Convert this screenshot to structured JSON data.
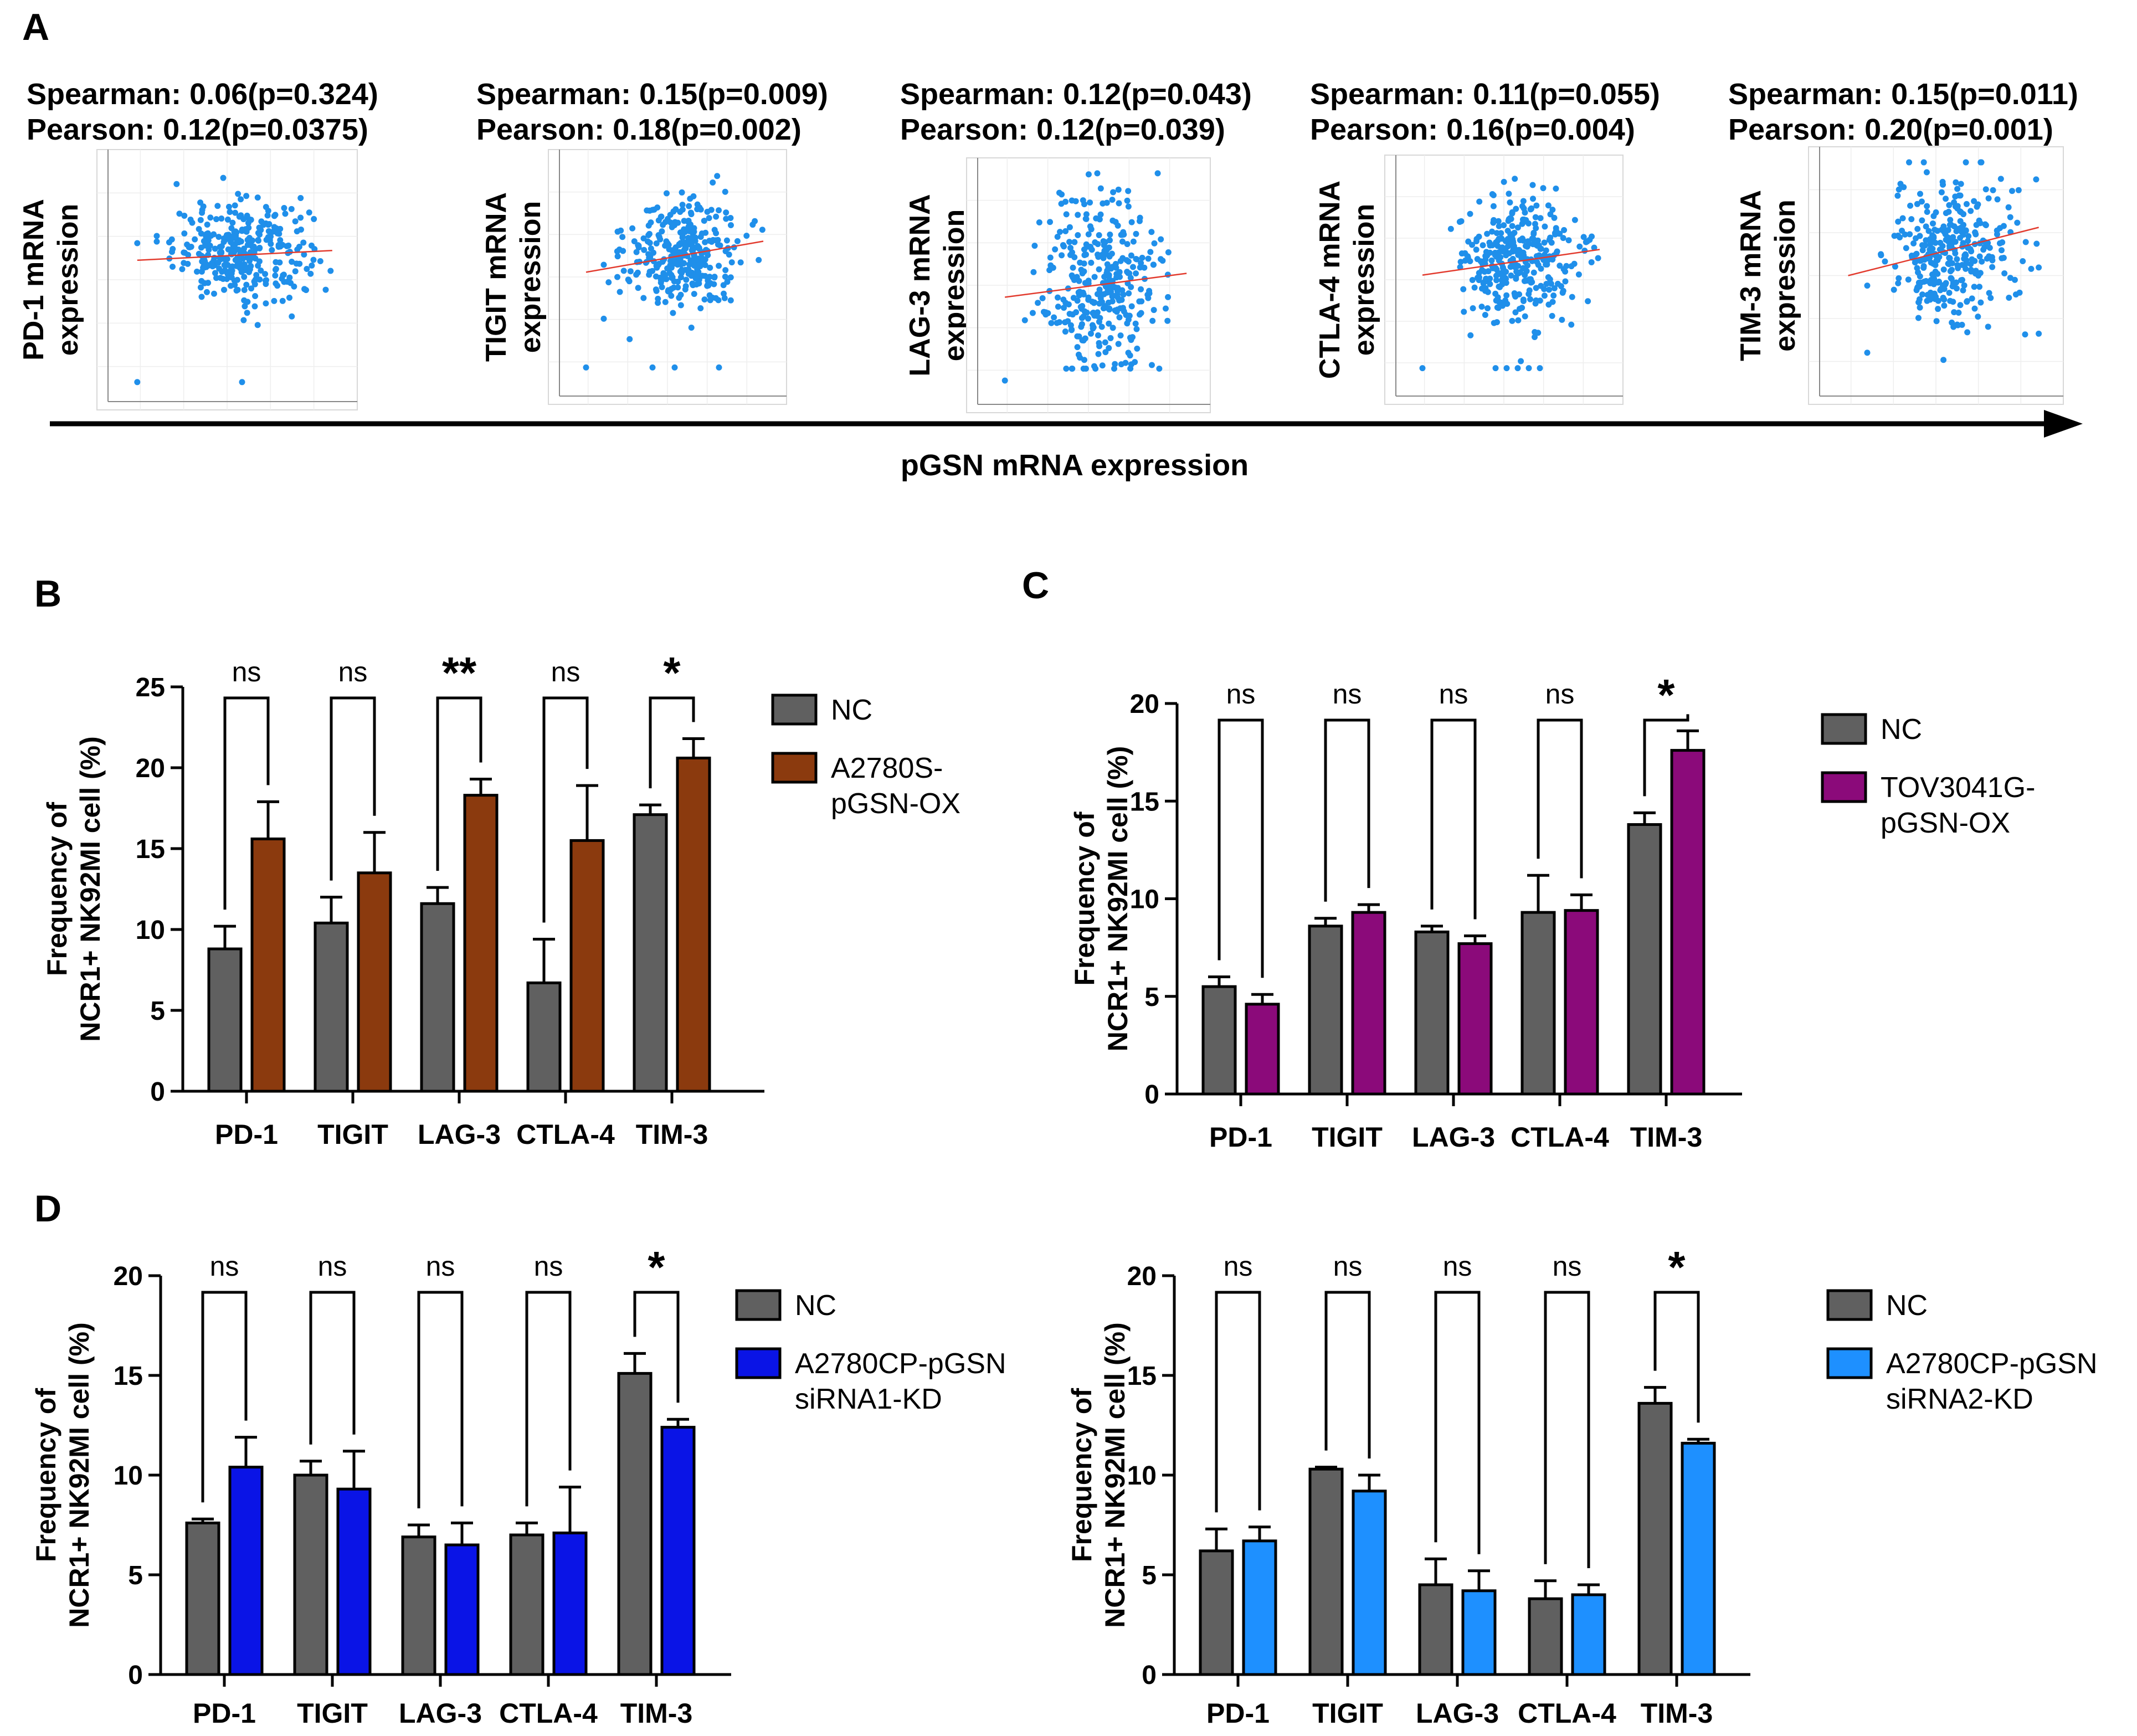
{
  "panel_a": {
    "label": "A",
    "x_label": "pGSN mRNA expression",
    "chart_data": [
      {
        "type": "scatter",
        "gene": "PD-1",
        "spearman": "Spearman: 0.06(p=0.324)",
        "pearson": "Pearson: 0.12(p=0.0375)",
        "ylabel_line1": "PD-1 mRNA",
        "ylabel_line2": "expression",
        "trend": {
          "y_start": 0.58,
          "y_end": 0.62
        },
        "n_points": 320,
        "cx": 0.55,
        "cy": 0.62,
        "sx": 0.14,
        "sy": 0.1,
        "outliers": [
          [
            0.12,
            0.08
          ],
          [
            0.55,
            0.08
          ],
          [
            0.12,
            0.65
          ]
        ]
      },
      {
        "type": "scatter",
        "gene": "TIGIT",
        "spearman": "Spearman: 0.15(p=0.009)",
        "pearson": "Pearson: 0.18(p=0.002)",
        "ylabel_line1": "TIGIT mRNA",
        "ylabel_line2": "expression",
        "trend": {
          "y_start": 0.52,
          "y_end": 0.65
        },
        "n_points": 320,
        "cx": 0.55,
        "cy": 0.6,
        "sx": 0.13,
        "sy": 0.12,
        "outliers": [
          [
            0.12,
            0.12
          ],
          [
            0.42,
            0.12
          ],
          [
            0.52,
            0.12
          ],
          [
            0.72,
            0.12
          ]
        ]
      },
      {
        "type": "scatter",
        "gene": "LAG-3",
        "spearman": "Spearman: 0.12(p=0.043)",
        "pearson": "Pearson: 0.12(p=0.039)",
        "ylabel_line1": "LAG-3  mRNA",
        "ylabel_line2": "expression",
        "trend": {
          "y_start": 0.45,
          "y_end": 0.55
        },
        "n_points": 340,
        "cx": 0.55,
        "cy": 0.5,
        "sx": 0.13,
        "sy": 0.2,
        "outliers": [
          [
            0.12,
            0.1
          ]
        ]
      },
      {
        "type": "scatter",
        "gene": "CTLA-4",
        "spearman": "Spearman: 0.11(p=0.055)",
        "pearson": "Pearson: 0.16(p=0.004)",
        "ylabel_line1": "CTLA-4  mRNA",
        "ylabel_line2": "expression",
        "trend": {
          "y_start": 0.52,
          "y_end": 0.63
        },
        "n_points": 340,
        "cx": 0.55,
        "cy": 0.58,
        "sx": 0.13,
        "sy": 0.14,
        "outliers": [
          [
            0.12,
            0.12
          ],
          [
            0.45,
            0.12
          ],
          [
            0.5,
            0.12
          ],
          [
            0.55,
            0.12
          ],
          [
            0.6,
            0.12
          ],
          [
            0.65,
            0.12
          ]
        ]
      },
      {
        "type": "scatter",
        "gene": "TIM-3",
        "spearman": "Spearman: 0.15(p=0.011)",
        "pearson": "Pearson: 0.20(p=0.001)",
        "ylabel_line1": "TIM-3  mRNA",
        "ylabel_line2": "expression",
        "trend": {
          "y_start": 0.5,
          "y_end": 0.7
        },
        "n_points": 330,
        "cx": 0.55,
        "cy": 0.6,
        "sx": 0.13,
        "sy": 0.16,
        "outliers": [
          [
            0.2,
            0.18
          ],
          [
            0.52,
            0.15
          ]
        ]
      }
    ]
  },
  "chart_data": [
    {
      "panel": "B",
      "type": "bar",
      "label": "B",
      "categories": [
        "PD-1",
        "TIGIT",
        "LAG-3",
        "CTLA-4",
        "TIM-3"
      ],
      "ylabel_line1": "Frequency of",
      "ylabel_line2": "NCR1+ NK92MI cell (%)",
      "ylim": [
        0,
        25
      ],
      "yticks": [
        0,
        5,
        10,
        15,
        20,
        25
      ],
      "series": [
        {
          "name": "NC",
          "color": "#606060",
          "values": [
            8.8,
            10.4,
            11.6,
            6.7,
            17.1
          ],
          "errors": [
            1.4,
            1.6,
            1.0,
            2.7,
            0.6
          ]
        },
        {
          "name": "A2780S-\npGSN-OX",
          "legend_line1": "A2780S-",
          "legend_line2": "pGSN-OX",
          "color": "#8B3A0E",
          "values": [
            15.6,
            13.5,
            18.3,
            15.5,
            20.6
          ],
          "errors": [
            2.3,
            2.5,
            1.0,
            3.4,
            1.2
          ]
        }
      ],
      "significance": [
        "ns",
        "ns",
        "**",
        "ns",
        "*"
      ]
    },
    {
      "panel": "C",
      "type": "bar",
      "label": "C",
      "categories": [
        "PD-1",
        "TIGIT",
        "LAG-3",
        "CTLA-4",
        "TIM-3"
      ],
      "ylabel_line1": "Frequency of",
      "ylabel_line2": "NCR1+ NK92MI cell (%)",
      "ylim": [
        0,
        20
      ],
      "yticks": [
        0,
        5,
        10,
        15,
        20
      ],
      "series": [
        {
          "name": "NC",
          "color": "#606060",
          "values": [
            5.5,
            8.6,
            8.3,
            9.3,
            13.8
          ],
          "errors": [
            0.5,
            0.4,
            0.3,
            1.9,
            0.6
          ]
        },
        {
          "name": "TOV3041G-\npGSN-OX",
          "legend_line1": "TOV3041G-",
          "legend_line2": "pGSN-OX",
          "color": "#8B0A7A",
          "values": [
            4.6,
            9.3,
            7.7,
            9.4,
            17.6
          ],
          "errors": [
            0.5,
            0.4,
            0.4,
            0.8,
            1.0
          ]
        }
      ],
      "significance": [
        "ns",
        "ns",
        "ns",
        "ns",
        "*"
      ]
    },
    {
      "panel": "D1",
      "type": "bar",
      "label": "D",
      "categories": [
        "PD-1",
        "TIGIT",
        "LAG-3",
        "CTLA-4",
        "TIM-3"
      ],
      "ylabel_line1": "Frequency of",
      "ylabel_line2": "NCR1+ NK92MI cell (%)",
      "ylim": [
        0,
        20
      ],
      "yticks": [
        0,
        5,
        10,
        15,
        20
      ],
      "series": [
        {
          "name": "NC",
          "color": "#606060",
          "values": [
            7.6,
            10.0,
            6.9,
            7.0,
            15.1
          ],
          "errors": [
            0.2,
            0.7,
            0.6,
            0.6,
            1.0
          ]
        },
        {
          "name": "A2780CP-pGSN\nsiRNA1-KD",
          "legend_line1": "A2780CP-pGSN",
          "legend_line2": "siRNA1-KD",
          "color": "#0A14E6",
          "values": [
            10.4,
            9.3,
            6.5,
            7.1,
            12.4
          ],
          "errors": [
            1.5,
            1.9,
            1.1,
            2.3,
            0.4
          ]
        }
      ],
      "significance": [
        "ns",
        "ns",
        "ns",
        "ns",
        "*"
      ]
    },
    {
      "panel": "D2",
      "type": "bar",
      "label": "",
      "categories": [
        "PD-1",
        "TIGIT",
        "LAG-3",
        "CTLA-4",
        "TIM-3"
      ],
      "ylabel_line1": "Frequency of",
      "ylabel_line2": "NCR1+ NK92MI cell (%)",
      "ylim": [
        0,
        20
      ],
      "yticks": [
        0,
        5,
        10,
        15,
        20
      ],
      "series": [
        {
          "name": "NC",
          "color": "#606060",
          "values": [
            6.2,
            10.3,
            4.5,
            3.8,
            13.6
          ],
          "errors": [
            1.1,
            0.1,
            1.3,
            0.9,
            0.8
          ]
        },
        {
          "name": "A2780CP-pGSN\nsiRNA2-KD",
          "legend_line1": "A2780CP-pGSN",
          "legend_line2": "siRNA2-KD",
          "color": "#1E90FF",
          "values": [
            6.7,
            9.2,
            4.2,
            4.0,
            11.6
          ],
          "errors": [
            0.7,
            0.8,
            1.0,
            0.5,
            0.2
          ]
        }
      ],
      "significance": [
        "ns",
        "ns",
        "ns",
        "ns",
        "*"
      ]
    }
  ]
}
